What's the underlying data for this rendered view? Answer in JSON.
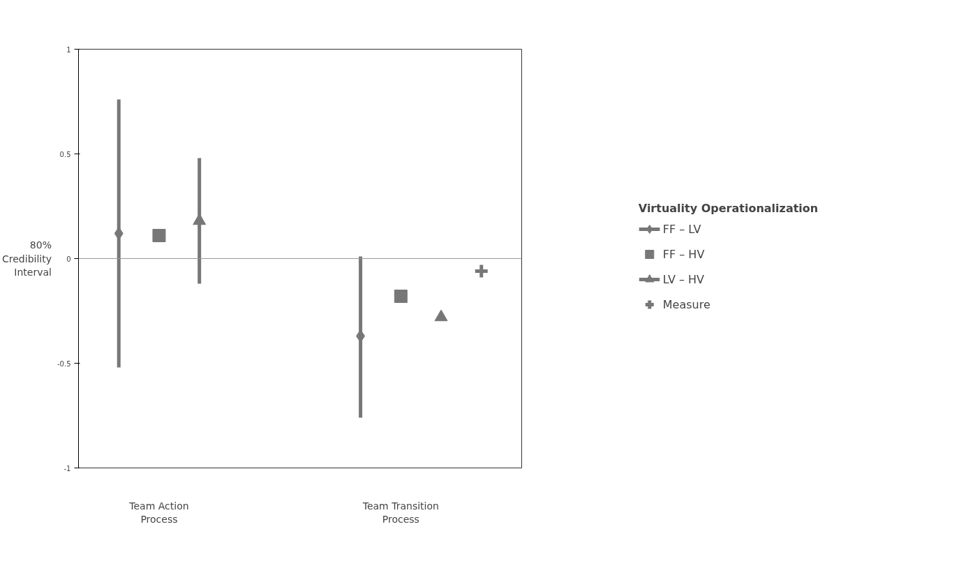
{
  "chart_data": {
    "type": "scatter",
    "categories": [
      null,
      "Team Action Process",
      null,
      null,
      null,
      null,
      null,
      "Team Transition Process",
      null,
      null
    ],
    "ylabel": "80% Credibility Interval",
    "legend_title": "Virtuality Operationalization",
    "ylim": [
      -1,
      1
    ],
    "yticks": [
      -1,
      -0.5,
      0,
      0.5,
      1
    ],
    "grid": false,
    "legend": "right",
    "ref_lines": [
      {
        "axis": "y",
        "value": 0
      }
    ],
    "series": [
      {
        "name": "FF – LV",
        "color": "#777777",
        "marker": "diamond",
        "values": [
          0.12,
          null,
          null,
          null,
          null,
          null,
          -0.37,
          null,
          null,
          null
        ],
        "errors": [
          [
            -0.52,
            0.76
          ],
          null,
          null,
          null,
          null,
          null,
          [
            -0.76,
            0.01
          ],
          null,
          null,
          null
        ]
      },
      {
        "name": "FF – HV",
        "color": "#777777",
        "marker": "square",
        "values": [
          null,
          0.11,
          null,
          null,
          null,
          null,
          null,
          -0.18,
          null,
          null
        ]
      },
      {
        "name": "LV – HV",
        "color": "#777777",
        "marker": "triangle",
        "values": [
          null,
          null,
          0.18,
          null,
          null,
          null,
          null,
          null,
          -0.28,
          null
        ],
        "errors": [
          null,
          null,
          [
            -0.12,
            0.48
          ],
          null,
          null,
          null,
          null,
          null,
          null,
          null
        ]
      },
      {
        "name": "Measure",
        "color": "#777777",
        "marker": "cross",
        "values": [
          null,
          null,
          null,
          null,
          null,
          null,
          null,
          null,
          null,
          -0.06
        ]
      }
    ]
  }
}
